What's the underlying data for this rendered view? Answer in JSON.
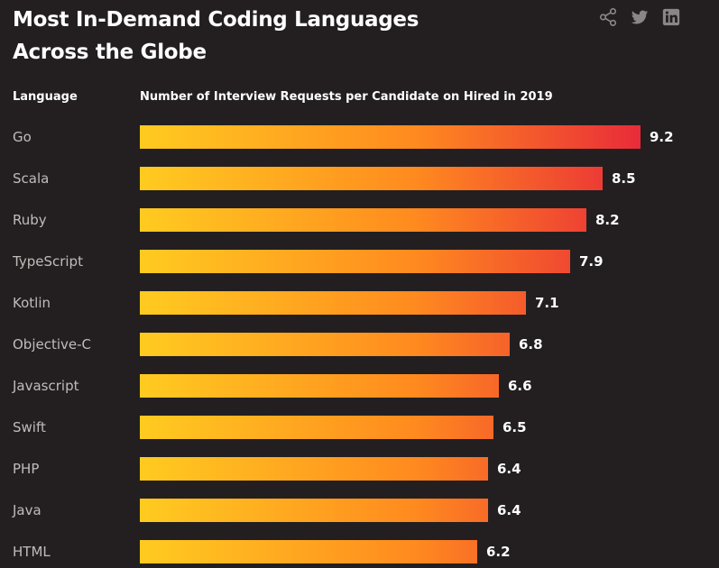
{
  "title": {
    "line1": "Most In-Demand Coding Languages",
    "line2": "Across the Globe"
  },
  "share_icons": [
    "share-icon",
    "twitter-icon",
    "linkedin-icon"
  ],
  "colors": {
    "background": "#231f20",
    "bar_start": "#ffcb20",
    "bar_mid": "#ff8a1f",
    "bar_end": "#e92b39",
    "icon": "#8a8687"
  },
  "headers": {
    "language": "Language",
    "metric": "Number of Interview Requests per Candidate on Hired in 2019"
  },
  "chart_data": {
    "type": "bar",
    "orientation": "horizontal",
    "title": "Most In-Demand Coding Languages Across the Globe",
    "xlabel": "Number of Interview Requests per Candidate on Hired in 2019",
    "ylabel": "Language",
    "categories": [
      "Go",
      "Scala",
      "Ruby",
      "TypeScript",
      "Kotlin",
      "Objective-C",
      "Javascript",
      "Swift",
      "PHP",
      "Java",
      "HTML"
    ],
    "values": [
      9.2,
      8.5,
      8.2,
      7.9,
      7.1,
      6.8,
      6.6,
      6.5,
      6.4,
      6.4,
      6.2
    ],
    "value_labels": [
      "9.2",
      "8.5",
      "8.2",
      "7.9",
      "7.1",
      "6.8",
      "6.6",
      "6.5",
      "6.4",
      "6.4",
      "6.2"
    ],
    "xlim": [
      0,
      9.2
    ],
    "grid": false,
    "legend": "none"
  }
}
